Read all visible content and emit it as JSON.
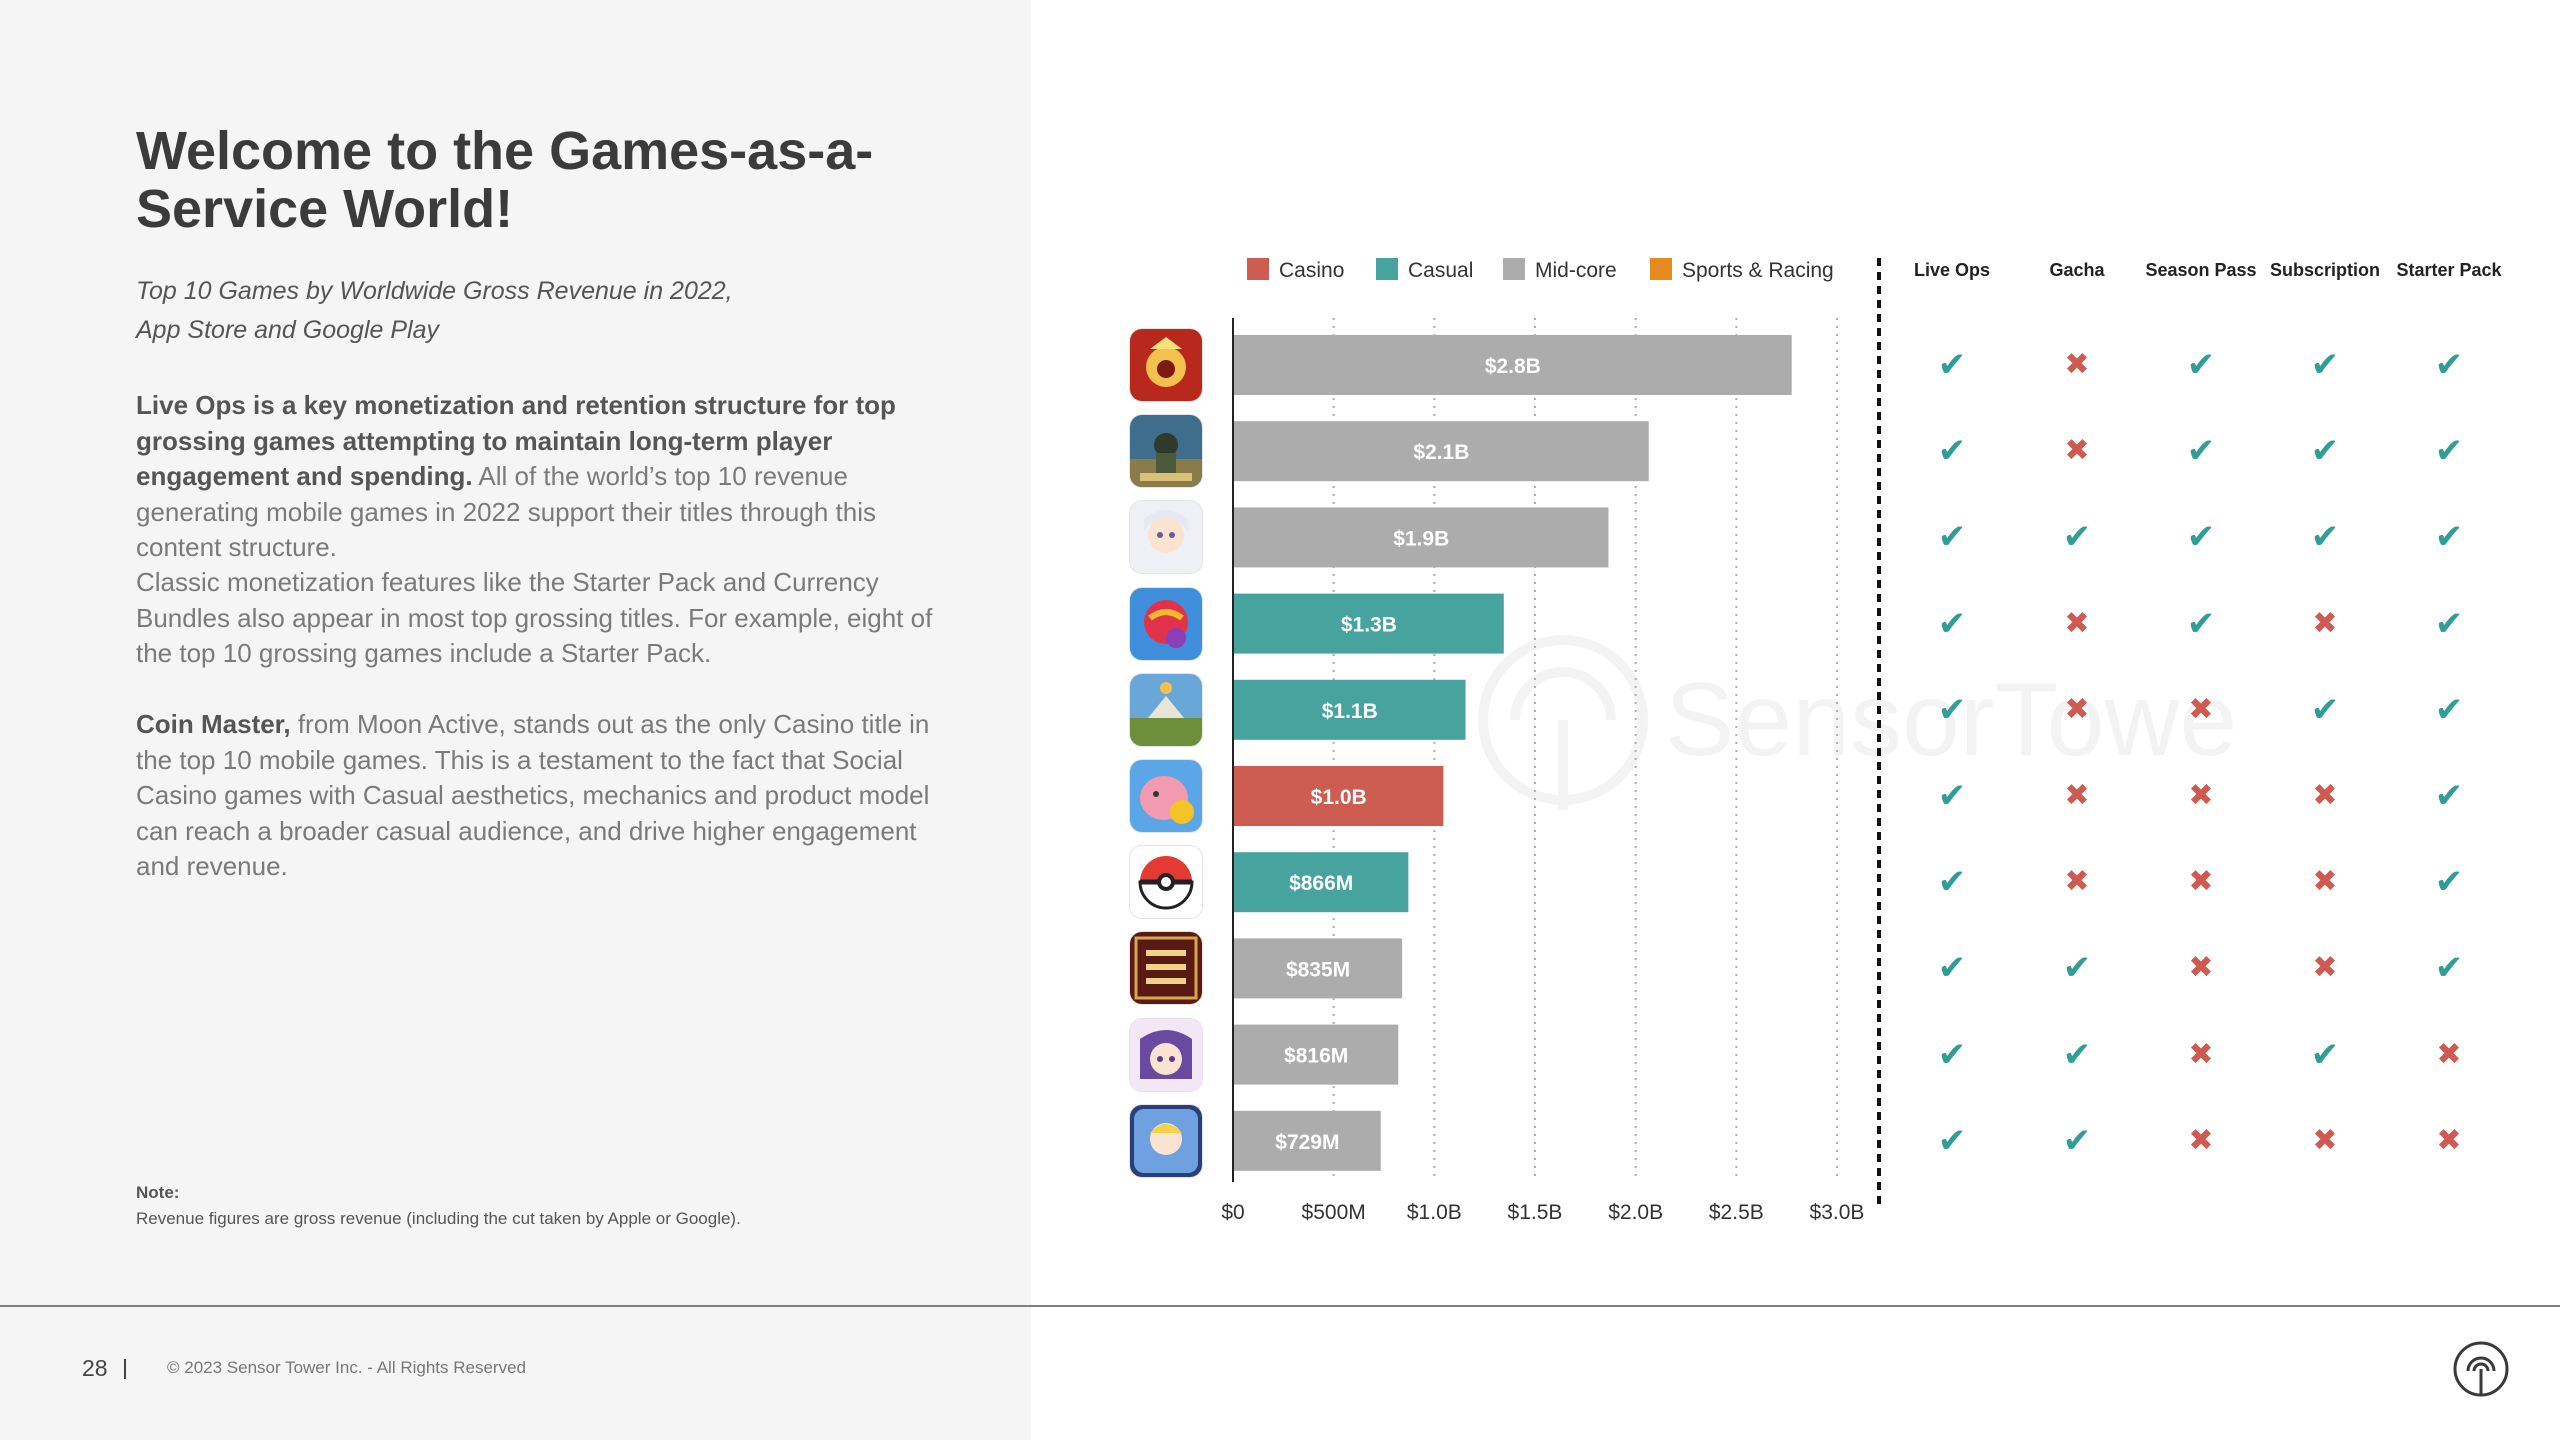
{
  "page": {
    "title": "Welcome to the Games-as-a-Service World!",
    "subtitle_lines": [
      "Top 10 Games by Worldwide Gross Revenue in 2022,",
      "App Store and Google Play"
    ],
    "para1_bold": "Live Ops is a key monetization and retention structure for top grossing games attempting to maintain long-term player engagement and spending.",
    "para1_rest": " All of the world’s top 10 revenue generating mobile games in 2022 support their titles through this content structure.",
    "para2": "Classic monetization features like the Starter Pack and Currency Bundles also appear in most top grossing titles. For example, eight of the top 10 grossing games include a Starter Pack.",
    "para3_bold": "Coin Master,",
    "para3_rest": " from Moon Active, stands out as the only Casino title in the top 10 mobile games. This is a testament to the fact that Social Casino games with Casual aesthetics, mechanics and product model can reach a broader casual audience, and drive higher engagement and revenue.",
    "note_label": "Note:",
    "note_text": "Revenue figures are gross revenue (including the cut taken by Apple or Google).",
    "page_number": "28",
    "copyright": "© 2023 Sensor Tower Inc. - All Rights Reserved",
    "watermark": "SensorTower"
  },
  "chart_data": {
    "type": "bar",
    "orientation": "horizontal",
    "title": "Top 10 Games by Worldwide Gross Revenue in 2022, App Store and Google Play",
    "unit": "USD",
    "xlim": [
      0,
      3000000000
    ],
    "x_ticks": [
      0,
      500000000,
      1000000000,
      1500000000,
      2000000000,
      2500000000,
      3000000000
    ],
    "x_tick_labels": [
      "$0",
      "$500M",
      "$1.0B",
      "$1.5B",
      "$2.0B",
      "$2.5B",
      "$3.0B"
    ],
    "grid": "vertical-dotted",
    "legend": [
      {
        "name": "Casino",
        "color": "#cd5c51"
      },
      {
        "name": "Casual",
        "color": "#47a39d"
      },
      {
        "name": "Mid-core",
        "color": "#acacac"
      },
      {
        "name": "Sports & Racing",
        "color": "#e58a1f"
      }
    ],
    "bars": [
      {
        "value": 2770000000,
        "label": "$2.8B",
        "category": "Mid-core",
        "icon": "honor-of-kings-icon"
      },
      {
        "value": 2060000000,
        "label": "$2.1B",
        "category": "Mid-core",
        "icon": "pubg-mobile-icon"
      },
      {
        "value": 1860000000,
        "label": "$1.9B",
        "category": "Mid-core",
        "icon": "genshin-impact-icon"
      },
      {
        "value": 1340000000,
        "label": "$1.3B",
        "category": "Casual",
        "icon": "candy-crush-icon"
      },
      {
        "value": 1150000000,
        "label": "$1.1B",
        "category": "Casual",
        "icon": "royal-match-icon"
      },
      {
        "value": 1040000000,
        "label": "$1.0B",
        "category": "Casino",
        "icon": "coin-master-icon"
      },
      {
        "value": 866000000,
        "label": "$866M",
        "category": "Casual",
        "icon": "pokemon-go-icon"
      },
      {
        "value": 835000000,
        "label": "$835M",
        "category": "Mid-core",
        "icon": "three-kingdoms-icon"
      },
      {
        "value": 816000000,
        "label": "$816M",
        "category": "Mid-core",
        "icon": "uma-musume-icon"
      },
      {
        "value": 729000000,
        "label": "$729M",
        "category": "Mid-core",
        "icon": "fate-grand-order-icon"
      }
    ],
    "feature_columns": [
      "Live Ops",
      "Gacha",
      "Season Pass",
      "Subscription",
      "Starter Pack"
    ],
    "feature_matrix": [
      [
        true,
        false,
        true,
        true,
        true
      ],
      [
        true,
        false,
        true,
        true,
        true
      ],
      [
        true,
        true,
        true,
        true,
        true
      ],
      [
        true,
        false,
        true,
        false,
        true
      ],
      [
        true,
        false,
        false,
        true,
        true
      ],
      [
        true,
        false,
        false,
        false,
        true
      ],
      [
        true,
        false,
        false,
        false,
        true
      ],
      [
        true,
        true,
        false,
        false,
        true
      ],
      [
        true,
        true,
        false,
        true,
        false
      ],
      [
        true,
        true,
        false,
        false,
        false
      ]
    ],
    "marks": {
      "yes": "✔",
      "no": "✖"
    }
  }
}
